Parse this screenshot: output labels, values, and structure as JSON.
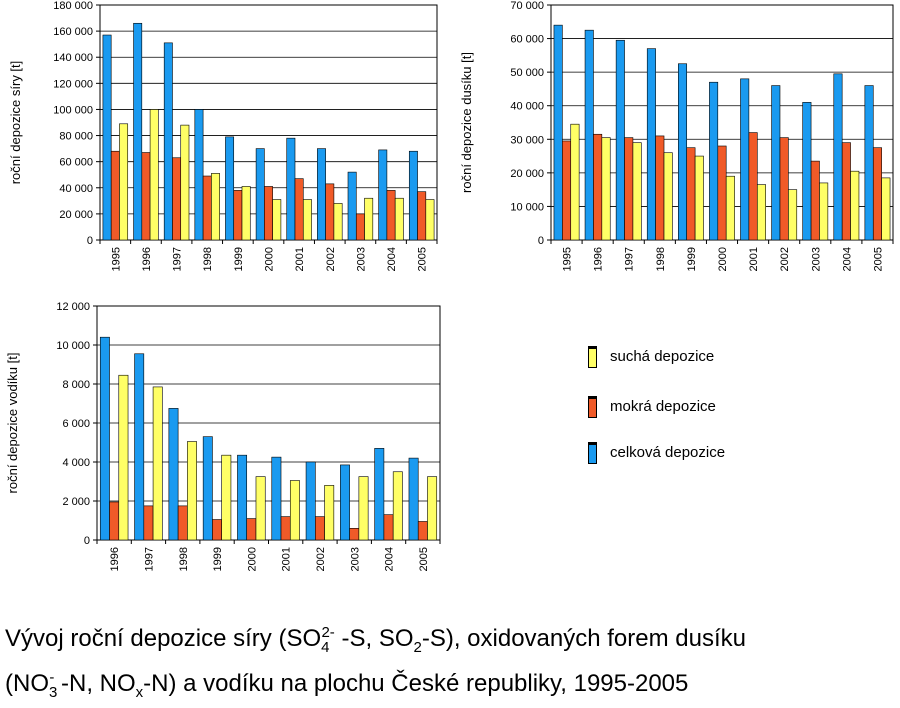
{
  "colors": {
    "celkova": "#1a9af0",
    "mokra": "#f05a28",
    "sucha": "#ffff66",
    "grid": "#000000"
  },
  "legend": {
    "items": [
      {
        "key": "sucha",
        "label": "suchá depozice"
      },
      {
        "key": "mokra",
        "label": "mokrá depozice"
      },
      {
        "key": "celkova",
        "label": "celková depozice"
      }
    ]
  },
  "caption": {
    "part1": "Vývoj roční depozice síry (SO",
    "so4_sub": "4",
    "so4_sup": "2-",
    "part2": " -S, SO",
    "so2_sub": "2",
    "part3": "-S), oxidovaných forem dusíku",
    "part4": "(NO",
    "no3_sub": "3",
    "no3_sup": "-",
    "part5": " -N, NO",
    "nox_sub": "x",
    "part6": "-N) a vodíku na plochu České republiky, 1995-2005"
  },
  "chart_data": [
    {
      "id": "sulfur",
      "type": "bar",
      "title": "",
      "xlabel": "",
      "ylabel": "roční depozice síry [t]",
      "ylim": [
        0,
        180000
      ],
      "yticks": [
        "0",
        "20 000",
        "40 000",
        "60 000",
        "80 000",
        "100 000",
        "120 000",
        "140 000",
        "160 000",
        "180 000"
      ],
      "categories": [
        "1995",
        "1996",
        "1997",
        "1998",
        "1999",
        "2000",
        "2001",
        "2002",
        "2003",
        "2004",
        "2005"
      ],
      "grid": true,
      "series": [
        {
          "name": "celková depozice",
          "key": "celkova",
          "values": [
            157000,
            166000,
            151000,
            100000,
            79000,
            70000,
            78000,
            70000,
            52000,
            69000,
            68000
          ]
        },
        {
          "name": "mokrá depozice",
          "key": "mokra",
          "values": [
            68000,
            67000,
            63000,
            49000,
            38000,
            41000,
            47000,
            43000,
            20000,
            38000,
            37000
          ]
        },
        {
          "name": "suchá depozice",
          "key": "sucha",
          "values": [
            89000,
            100000,
            88000,
            51000,
            41000,
            31000,
            31000,
            28000,
            32000,
            32000,
            31000
          ]
        }
      ]
    },
    {
      "id": "nitrogen",
      "type": "bar",
      "title": "",
      "xlabel": "",
      "ylabel": "roční depozice dusíku [t]",
      "ylim": [
        0,
        70000
      ],
      "yticks": [
        "0",
        "10 000",
        "20 000",
        "30 000",
        "40 000",
        "50 000",
        "60 000",
        "70 000"
      ],
      "categories": [
        "1995",
        "1996",
        "1997",
        "1998",
        "1999",
        "2000",
        "2001",
        "2002",
        "2003",
        "2004",
        "2005"
      ],
      "grid": true,
      "series": [
        {
          "name": "celková depozice",
          "key": "celkova",
          "values": [
            64000,
            62500,
            59500,
            57000,
            52500,
            47000,
            48000,
            46000,
            41000,
            49500,
            46000
          ]
        },
        {
          "name": "mokrá depozice",
          "key": "mokra",
          "values": [
            29500,
            31500,
            30500,
            31000,
            27500,
            28000,
            32000,
            30500,
            23500,
            29000,
            27500
          ]
        },
        {
          "name": "suchá depozice",
          "key": "sucha",
          "values": [
            34500,
            30500,
            29000,
            26000,
            25000,
            19000,
            16500,
            15000,
            17000,
            20500,
            18500
          ]
        }
      ]
    },
    {
      "id": "hydrogen",
      "type": "bar",
      "title": "",
      "xlabel": "",
      "ylabel": "roční depozice vodíku [t]",
      "ylim": [
        0,
        12000
      ],
      "yticks": [
        "0",
        "2 000",
        "4 000",
        "6 000",
        "8 000",
        "10 000",
        "12 000"
      ],
      "categories": [
        "1996",
        "1997",
        "1998",
        "1999",
        "2000",
        "2001",
        "2002",
        "2003",
        "2004",
        "2005"
      ],
      "grid": true,
      "series": [
        {
          "name": "celková depozice",
          "key": "celkova",
          "values": [
            10400,
            9550,
            6750,
            5300,
            4350,
            4250,
            4000,
            3850,
            4700,
            4200
          ]
        },
        {
          "name": "mokrá depozice",
          "key": "mokra",
          "values": [
            1950,
            1750,
            1750,
            1050,
            1100,
            1200,
            1200,
            600,
            1300,
            950
          ]
        },
        {
          "name": "suchá depozice",
          "key": "sucha",
          "values": [
            8450,
            7850,
            5050,
            4350,
            3250,
            3050,
            2800,
            3250,
            3500,
            3250
          ]
        }
      ]
    }
  ]
}
